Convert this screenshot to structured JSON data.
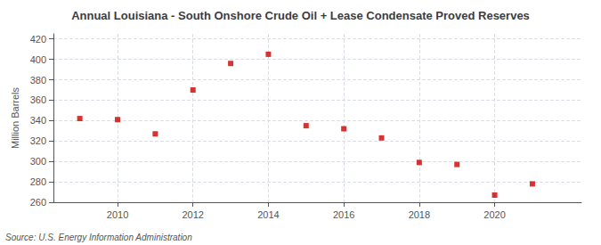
{
  "chart_data": {
    "type": "scatter",
    "title": "Annual Louisiana - South Onshore Crude Oil + Lease Condensate Proved Reserves",
    "ylabel": "Million Barrels",
    "annotation": "Source: U.S. Energy Information Administration",
    "x": [
      2009,
      2010,
      2011,
      2012,
      2013,
      2014,
      2015,
      2016,
      2017,
      2018,
      2019,
      2020,
      2021
    ],
    "values": [
      342,
      341,
      327,
      370,
      396,
      405,
      335,
      332,
      323,
      299,
      297,
      267,
      278
    ],
    "color": "#cc0000",
    "marker": "square",
    "xlim": [
      2008.3,
      2022.3
    ],
    "xticks": [
      2010,
      2012,
      2014,
      2016,
      2018,
      2020
    ],
    "ylim": [
      260,
      425
    ],
    "yticks": [
      260,
      280,
      300,
      320,
      340,
      360,
      380,
      400,
      420
    ],
    "grid": true
  }
}
